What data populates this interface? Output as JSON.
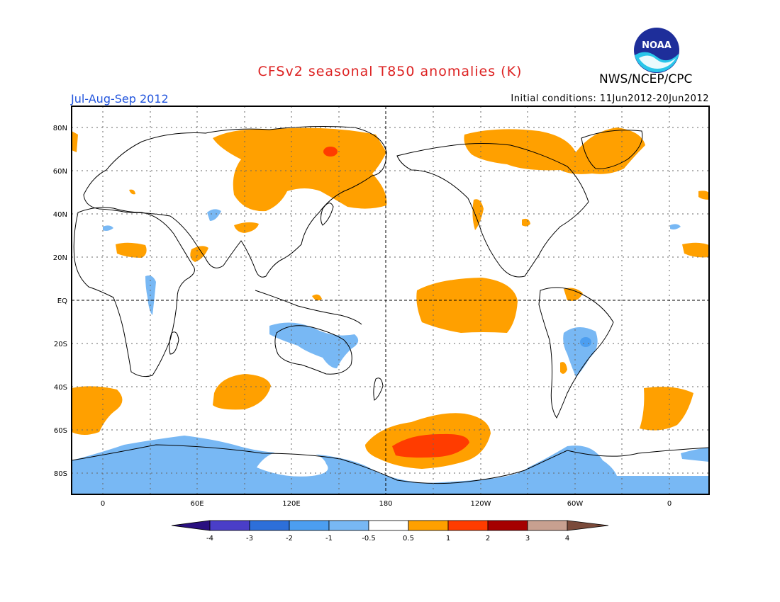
{
  "title": "CFSv2 seasonal T850 anomalies (K)",
  "agency": "NWS/NCEP/CPC",
  "period": "Jul-Aug-Sep 2012",
  "initial_conditions": "Initial conditions: 11Jun2012-20Jun2012",
  "logo_text": "NOAA",
  "colors": {
    "title": "#dd2222",
    "period": "#2255dd",
    "neg_4": "#2a1080",
    "neg_3": "#4a3ec8",
    "neg_2": "#2d6fd9",
    "neg_1": "#4c9ef0",
    "neg_05": "#78b8f4",
    "zero": "#ffffff",
    "pos_05": "#ffa000",
    "pos_1": "#ff3c00",
    "pos_2": "#a50000",
    "pos_3": "#c8a090",
    "pos_4": "#7a4a3a"
  },
  "lat_labels": [
    "80N",
    "60N",
    "40N",
    "20N",
    "EQ",
    "20S",
    "40S",
    "60S",
    "80S"
  ],
  "lon_labels": [
    "0",
    "60E",
    "120E",
    "180",
    "120W",
    "60W",
    "0"
  ],
  "colorbar_labels": [
    "-4",
    "-3",
    "-2",
    "-1",
    "-0.5",
    "0.5",
    "1",
    "2",
    "3",
    "4"
  ],
  "chart_data": {
    "type": "heatmap",
    "variable": "T850 anomalies",
    "unit": "K",
    "levels": [
      -4,
      -3,
      -2,
      -1,
      -0.5,
      0.5,
      1,
      2,
      3,
      4
    ],
    "features": [
      {
        "region": "Central Siberia",
        "anomaly": "+0.5 to +1",
        "peak": "+1 to +2"
      },
      {
        "region": "Canadian Arctic / Greenland",
        "anomaly": "+0.5 to +1"
      },
      {
        "region": "Central equatorial Pacific",
        "anomaly": "+0.5 to +1"
      },
      {
        "region": "South Pacific / Amundsen Sea",
        "anomaly": "+0.5 to +1",
        "peak": "+1 to +2"
      },
      {
        "region": "Australia / Indian Ocean",
        "anomaly": "-1 to -0.5"
      },
      {
        "region": "Central South America",
        "anomaly": "-1 to -0.5",
        "peak": "-2 to -1"
      },
      {
        "region": "Antarctica / Southern Ocean",
        "anomaly": "-1 to -0.5"
      }
    ]
  }
}
